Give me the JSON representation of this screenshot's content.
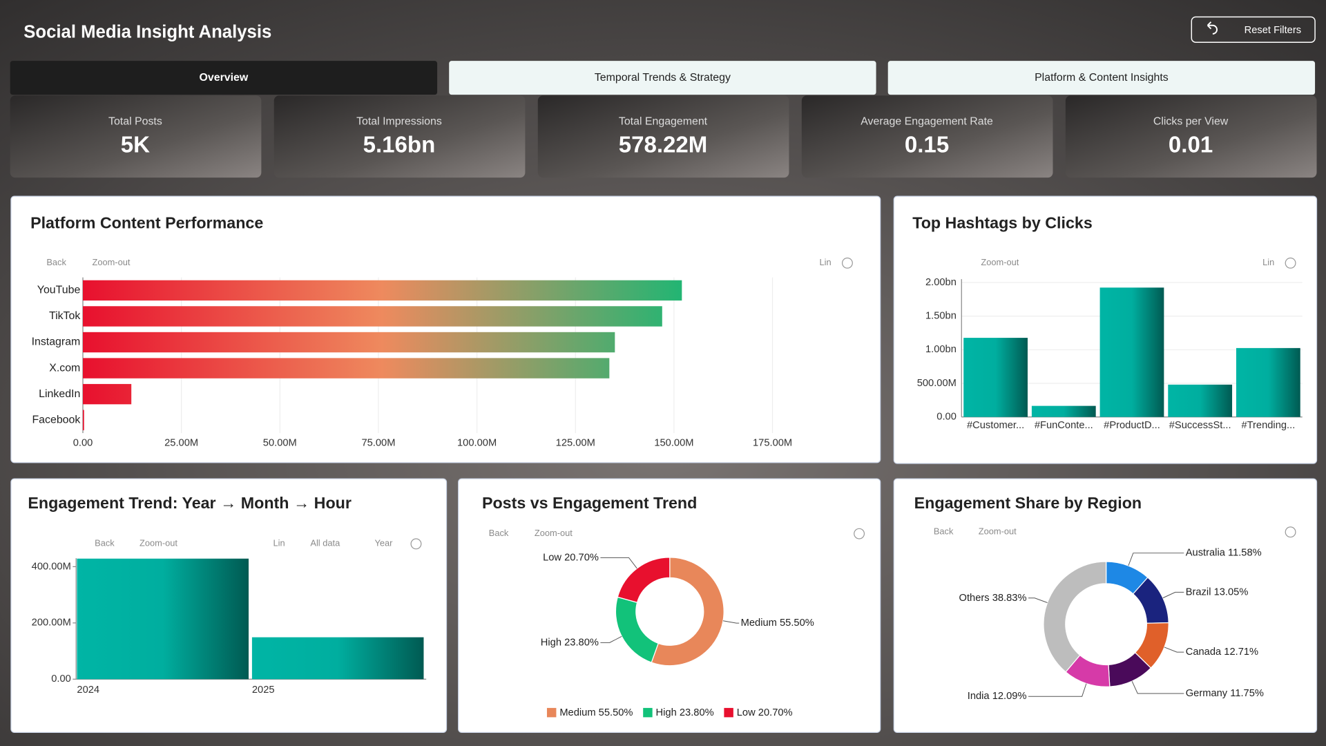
{
  "header": {
    "title": "Social Media Insight Analysis",
    "reset_button": "Reset Filters"
  },
  "tabs": [
    "Overview",
    "Temporal Trends & Strategy",
    "Platform & Content Insights"
  ],
  "active_tab": 0,
  "kpis": [
    {
      "label": "Total Posts",
      "value": "5K"
    },
    {
      "label": "Total Impressions",
      "value": "5.16bn"
    },
    {
      "label": "Total Engagement",
      "value": "578.22M"
    },
    {
      "label": "Average Engagement Rate",
      "value": "0.15"
    },
    {
      "label": "Clicks per View",
      "value": "0.01"
    }
  ],
  "chart_data": [
    {
      "type": "hbar",
      "title": "Platform Content Performance",
      "toolbar": [
        "Back",
        "Zoom-out",
        "Lin"
      ],
      "categories": [
        "YouTube",
        "TikTok",
        "Instagram",
        "X.com",
        "LinkedIn",
        "Facebook"
      ],
      "values": [
        152000000,
        147000000,
        135000000,
        133600000,
        12300000,
        300000
      ],
      "colors": [
        "#e8102e",
        "#ee8a5e",
        "#22b573"
      ],
      "xlim": [
        0,
        200000000
      ],
      "xticks": [
        {
          "value": 0,
          "label": "0.00"
        },
        {
          "value": 25000000,
          "label": "25.00M"
        },
        {
          "value": 50000000,
          "label": "50.00M"
        },
        {
          "value": 75000000,
          "label": "75.00M"
        },
        {
          "value": 100000000,
          "label": "100.00M"
        },
        {
          "value": 125000000,
          "label": "125.00M"
        },
        {
          "value": 150000000,
          "label": "150.00M"
        },
        {
          "value": 175000000,
          "label": "175.00M"
        }
      ],
      "grid": true
    },
    {
      "type": "bar",
      "title": "Top Hashtags by Clicks",
      "toolbar": [
        "Zoom-out",
        "Lin"
      ],
      "categories": [
        "#Customer...",
        "#FunConte...",
        "#ProductD...",
        "#SuccessSt...",
        "#Trending..."
      ],
      "values": [
        1177000000,
        165000000,
        1924000000,
        481000000,
        1025000000
      ],
      "color": "#00b5a5",
      "ylim": [
        0,
        2050000000
      ],
      "yticks": [
        {
          "value": 0,
          "label": "0.00"
        },
        {
          "value": 500000000,
          "label": "500.00M"
        },
        {
          "value": 1000000000,
          "label": "1.00bn"
        },
        {
          "value": 1500000000,
          "label": "1.50bn"
        },
        {
          "value": 2000000000,
          "label": "2.00bn"
        }
      ],
      "grid": true
    },
    {
      "type": "bar",
      "title": "Engagement Trend: Year → Month → Hour",
      "toolbar": [
        "Back",
        "Zoom-out",
        "Lin",
        "All data",
        "Year"
      ],
      "categories": [
        "2024",
        "2025"
      ],
      "values": [
        428600000,
        149000000
      ],
      "color": "#00b5a5",
      "ylim": [
        0,
        430000000
      ],
      "yticks": [
        {
          "value": 0,
          "label": "0.00"
        },
        {
          "value": 200000000,
          "label": "200.00M"
        },
        {
          "value": 400000000,
          "label": "400.00M"
        }
      ],
      "grid": false
    },
    {
      "type": "donut",
      "title": "Posts vs Engagement Trend",
      "toolbar": [
        "Back",
        "Zoom-out"
      ],
      "categories": [
        "Medium",
        "High",
        "Low"
      ],
      "values": [
        55.5,
        23.8,
        20.7
      ],
      "value_labels": [
        "55.50%",
        "23.80%",
        "20.70%"
      ],
      "colors": [
        "#e8875a",
        "#12c27a",
        "#e8102e"
      ],
      "legend": true
    },
    {
      "type": "donut",
      "title": "Engagement Share by Region",
      "toolbar": [
        "Back",
        "Zoom-out"
      ],
      "categories": [
        "Australia",
        "Brazil",
        "Canada",
        "Germany",
        "India",
        "Others"
      ],
      "values": [
        11.58,
        13.05,
        12.71,
        11.75,
        12.09,
        38.83
      ],
      "value_labels": [
        "11.58%",
        "13.05%",
        "12.71%",
        "11.75%",
        "12.09%",
        "38.83%"
      ],
      "colors": [
        "#1e88e5",
        "#1a237e",
        "#e0602a",
        "#4a0a5a",
        "#d63aa8",
        "#bdbdbd"
      ],
      "legend": false
    }
  ]
}
